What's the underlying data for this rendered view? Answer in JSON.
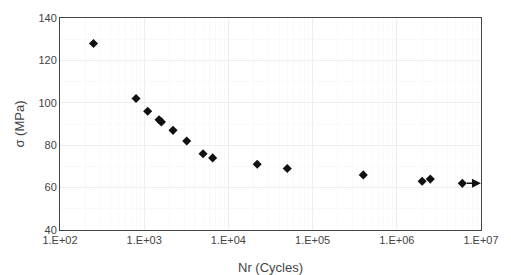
{
  "chart_data": {
    "type": "scatter",
    "title": "",
    "xlabel": "Nr (Cycles)",
    "ylabel": "σ (MPa)",
    "log": "x",
    "grid": true,
    "marker": "diamond",
    "color": "#111111",
    "xlim": [
      100,
      10000000
    ],
    "ylim": [
      40,
      140
    ],
    "xticks": [
      {
        "value": 100,
        "label": "1.E+02"
      },
      {
        "value": 1000,
        "label": "1.E+03"
      },
      {
        "value": 10000,
        "label": "1.E+04"
      },
      {
        "value": 100000,
        "label": "1.E+05"
      },
      {
        "value": 1000000,
        "label": "1.E+06"
      },
      {
        "value": 10000000,
        "label": "1.E+07"
      }
    ],
    "yticks": [
      40,
      60,
      80,
      100,
      120,
      140
    ],
    "series": [
      {
        "x": [
          250,
          800,
          1100,
          1500,
          1600,
          2200,
          3200,
          5000,
          6500,
          22000,
          50000,
          400000,
          2000000,
          2500000
        ],
        "values": [
          128,
          102,
          96,
          92,
          91,
          87,
          82,
          76,
          74,
          71,
          69,
          66,
          63,
          64
        ]
      },
      {
        "type": "runout",
        "x": [
          6000000
        ],
        "values": [
          62
        ],
        "arrow": {
          "from": 6500000,
          "to": 9990000,
          "y": 62
        }
      }
    ]
  }
}
